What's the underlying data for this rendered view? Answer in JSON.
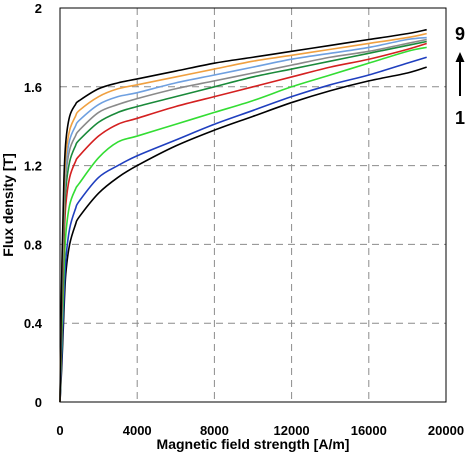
{
  "chart_data": {
    "type": "line",
    "title": "",
    "xlabel": "Magnetic field strength [A/m]",
    "ylabel": "Flux density [T]",
    "xlim": [
      0,
      20000
    ],
    "ylim": [
      0,
      2
    ],
    "xticks": [
      "0",
      "4000",
      "8000",
      "12000",
      "16000",
      "20000"
    ],
    "yticks": [
      "0",
      "0.4",
      "0.8",
      "1.2",
      "1.6",
      "2"
    ],
    "grid": true,
    "legend": "none",
    "annotations": {
      "top": "9",
      "bottom": "1",
      "arrow": "upward"
    },
    "x": [
      0,
      100,
      200,
      300,
      500,
      800,
      1000,
      2000,
      3000,
      4000,
      6000,
      8000,
      10000,
      12000,
      14000,
      16000,
      18000,
      19000
    ],
    "series": [
      {
        "color": "#000000",
        "values": [
          0,
          0.2,
          0.45,
          0.65,
          0.8,
          0.9,
          0.94,
          1.06,
          1.14,
          1.2,
          1.3,
          1.38,
          1.45,
          1.52,
          1.58,
          1.63,
          1.67,
          1.7
        ]
      },
      {
        "color": "#1f3fbf",
        "values": [
          0,
          0.25,
          0.52,
          0.72,
          0.88,
          0.98,
          1.02,
          1.14,
          1.2,
          1.25,
          1.33,
          1.41,
          1.48,
          1.55,
          1.61,
          1.66,
          1.72,
          1.75
        ]
      },
      {
        "color": "#33dd33",
        "values": [
          0,
          0.35,
          0.65,
          0.85,
          1.0,
          1.08,
          1.11,
          1.24,
          1.32,
          1.35,
          1.41,
          1.47,
          1.53,
          1.6,
          1.66,
          1.72,
          1.78,
          1.8
        ]
      },
      {
        "color": "#d42020",
        "values": [
          0,
          0.45,
          0.8,
          1.0,
          1.14,
          1.22,
          1.25,
          1.35,
          1.41,
          1.44,
          1.5,
          1.55,
          1.6,
          1.65,
          1.7,
          1.74,
          1.79,
          1.82
        ]
      },
      {
        "color": "#1a8a3a",
        "values": [
          0,
          0.5,
          0.88,
          1.08,
          1.22,
          1.3,
          1.33,
          1.42,
          1.47,
          1.5,
          1.55,
          1.6,
          1.65,
          1.69,
          1.73,
          1.77,
          1.81,
          1.83
        ]
      },
      {
        "color": "#8a8a8a",
        "values": [
          0,
          0.55,
          0.95,
          1.15,
          1.28,
          1.35,
          1.38,
          1.47,
          1.51,
          1.54,
          1.59,
          1.63,
          1.67,
          1.71,
          1.75,
          1.78,
          1.82,
          1.84
        ]
      },
      {
        "color": "#6fa0e0",
        "values": [
          0,
          0.6,
          1.0,
          1.2,
          1.33,
          1.4,
          1.43,
          1.51,
          1.55,
          1.57,
          1.62,
          1.66,
          1.7,
          1.74,
          1.77,
          1.8,
          1.84,
          1.85
        ]
      },
      {
        "color": "#f0a040",
        "values": [
          0,
          0.65,
          1.05,
          1.25,
          1.38,
          1.45,
          1.48,
          1.55,
          1.59,
          1.61,
          1.65,
          1.69,
          1.73,
          1.76,
          1.79,
          1.82,
          1.85,
          1.87
        ]
      },
      {
        "color": "#000000",
        "values": [
          0,
          0.7,
          1.12,
          1.32,
          1.45,
          1.51,
          1.53,
          1.59,
          1.62,
          1.64,
          1.68,
          1.72,
          1.75,
          1.78,
          1.81,
          1.84,
          1.87,
          1.89
        ]
      }
    ]
  }
}
